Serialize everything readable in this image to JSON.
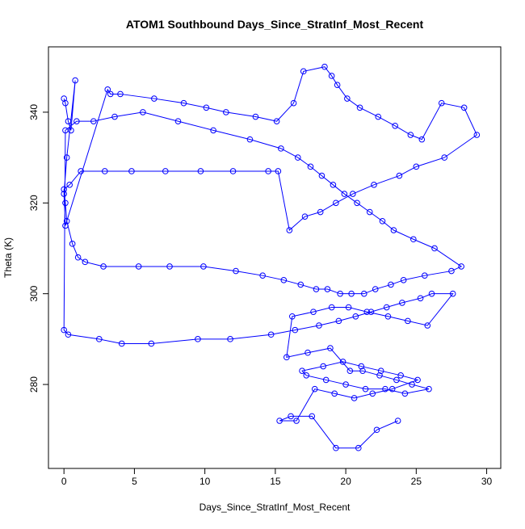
{
  "chart_data": {
    "type": "line",
    "title": "ATOM1 Southbound Days_Since_StratInf_Most_Recent",
    "x_label": "Days_Since_StratInf_Most_Recent",
    "y_label": "Theta (K)",
    "color": "#0000ff",
    "markers": true,
    "xlim": [
      -1.1,
      31.0
    ],
    "ylim": [
      261.5,
      354.4
    ],
    "xticks": [
      0,
      5,
      10,
      15,
      20,
      25,
      30
    ],
    "yticks": [
      280,
      300,
      320,
      340
    ],
    "x": [
      0,
      0.1,
      0.3,
      0.5,
      0.8,
      0.2,
      0,
      0.1,
      3.1,
      3.3,
      4,
      6.4,
      8.5,
      10.1,
      11.5,
      13.6,
      15.1,
      16.3,
      17,
      18.5,
      19,
      19.4,
      20.1,
      21,
      22.3,
      23.5,
      24.6,
      25.4,
      26.8,
      28.4,
      29.3,
      27,
      25,
      23.8,
      22,
      20.5,
      19.3,
      18.2,
      17.1,
      16,
      15.2,
      14.5,
      12,
      9.7,
      7.2,
      4.8,
      2.9,
      1.2,
      0.4,
      0,
      0.1,
      0.2,
      0.6,
      1,
      1.5,
      2.8,
      5.3,
      7.5,
      9.9,
      12.2,
      14.1,
      15.6,
      16.8,
      17.9,
      18.7,
      19.6,
      20.4,
      21.3,
      22.1,
      23.2,
      24.1,
      25.6,
      27.5,
      28.2,
      26.3,
      24.8,
      23.4,
      22.6,
      21.7,
      20.8,
      19.9,
      19.1,
      18.3,
      17.5,
      16.6,
      15.4,
      13.2,
      10.6,
      8.1,
      5.6,
      3.6,
      2.1,
      0.9,
      0.1,
      0,
      0.3,
      2.5,
      4.1,
      6.2,
      9.5,
      11.8,
      14.7,
      16.4,
      18.1,
      19.5,
      20.7,
      21.8,
      22.9,
      24,
      25.3,
      26.1,
      27.6,
      25.8,
      24.4,
      23,
      21.5,
      20.2,
      19,
      17.7,
      16.2,
      15.8,
      17.3,
      18.9,
      20.3,
      21.2,
      22.4,
      23.6,
      24.7,
      25.9,
      24.2,
      22.8,
      21.4,
      20,
      18.6,
      17.2,
      16.9,
      18.4,
      19.8,
      21.1,
      22.5,
      23.9,
      25.1,
      23.3,
      21.9,
      20.6,
      19.2,
      17.8,
      16.5,
      15.3,
      16.1,
      17.6,
      19.3,
      20.9,
      22.2,
      23.7
    ],
    "values": [
      343,
      342,
      338,
      336,
      347,
      330,
      322,
      315,
      345,
      344,
      344,
      343,
      342,
      341,
      340,
      339,
      338,
      342,
      349,
      350,
      348,
      346,
      343,
      341,
      339,
      337,
      335,
      334,
      342,
      341,
      335,
      330,
      328,
      326,
      324,
      322,
      320,
      318,
      317,
      314,
      327,
      327,
      327,
      327,
      327,
      327,
      327,
      327,
      324,
      323,
      320,
      316,
      311,
      308,
      307,
      306,
      306,
      306,
      306,
      305,
      304,
      303,
      302,
      301,
      301,
      300,
      300,
      300,
      301,
      302,
      303,
      304,
      305,
      306,
      310,
      312,
      314,
      316,
      318,
      320,
      322,
      324,
      326,
      328,
      330,
      332,
      334,
      336,
      338,
      340,
      339,
      338,
      338,
      336,
      292,
      291,
      290,
      289,
      289,
      290,
      290,
      291,
      292,
      293,
      294,
      295,
      296,
      297,
      298,
      299,
      300,
      300,
      293,
      294,
      295,
      296,
      297,
      297,
      296,
      295,
      286,
      287,
      288,
      283,
      283,
      282,
      281,
      280,
      279,
      278,
      279,
      279,
      280,
      281,
      282,
      283,
      284,
      285,
      284,
      283,
      282,
      281,
      279,
      278,
      277,
      278,
      279,
      272,
      272,
      273,
      273,
      266,
      266,
      270,
      272
    ]
  }
}
